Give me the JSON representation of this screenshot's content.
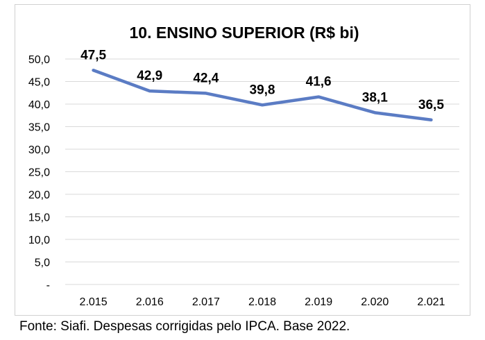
{
  "chart_data": {
    "type": "line",
    "title": "10. ENSINO SUPERIOR (R$ bi)",
    "categories": [
      "2.015",
      "2.016",
      "2.017",
      "2.018",
      "2.019",
      "2.020",
      "2.021"
    ],
    "values": [
      47.5,
      42.9,
      42.4,
      39.8,
      41.6,
      38.1,
      36.5
    ],
    "data_labels": [
      "47,5",
      "42,9",
      "42,4",
      "39,8",
      "41,6",
      "38,1",
      "36,5"
    ],
    "ylim": [
      0,
      50
    ],
    "yticks": [
      0,
      5,
      10,
      15,
      20,
      25,
      30,
      35,
      40,
      45,
      50
    ],
    "ytick_labels": [
      "-",
      "5,0",
      "10,0",
      "15,0",
      "20,0",
      "25,0",
      "30,0",
      "35,0",
      "40,0",
      "45,0",
      "50,0"
    ],
    "grid": true,
    "line_color": "#5b7cc4",
    "grid_color": "#d9d9d9"
  },
  "caption": "Fonte: Siafi. Despesas corrigidas pelo IPCA. Base 2022."
}
